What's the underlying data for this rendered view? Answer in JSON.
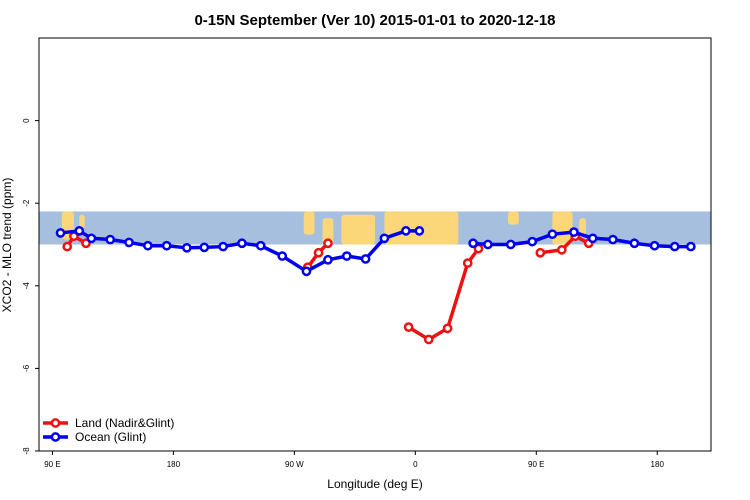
{
  "chart_data": {
    "type": "line",
    "title": "0-15N September (Ver 10)   2015-01-01 to 2020-12-18",
    "xlabel": "Longitude (deg E)",
    "ylabel": "XCO2 - MLO trend (ppm)",
    "xlim": [
      80,
      180
    ],
    "ylim": [
      -8,
      2
    ],
    "x_tick_values": [
      90,
      180,
      270,
      360,
      450,
      540
    ],
    "x_tick_labels": [
      "90 E",
      "180",
      "90 W",
      "0",
      "90 E",
      "180"
    ],
    "y_tick_values": [
      -8,
      -6,
      -4,
      -2,
      0
    ],
    "y_tick_labels": [
      "-8",
      "-6",
      "-4",
      "-2",
      "0"
    ],
    "legend_position": "bottom-left",
    "map_band": {
      "y_range": [
        -3.0,
        -2.2
      ],
      "ocean_color": "#a7bfdf",
      "land_color": "#fbd77a"
    },
    "series": [
      {
        "name": "Land (Nadir&Glint)",
        "color": "#ee1111",
        "segments": [
          {
            "x": [
              101,
              106,
              115
            ],
            "y": [
              -3.05,
              -2.8,
              -2.97
            ]
          },
          {
            "x": [
              280,
              288,
              295
            ],
            "y": [
              -3.55,
              -3.2,
              -2.97
            ]
          },
          {
            "x": [
              355,
              370,
              384,
              399,
              407
            ],
            "y": [
              -5.0,
              -5.3,
              -5.03,
              -3.45,
              -3.1
            ]
          },
          {
            "x": [
              453,
              469,
              479,
              489
            ],
            "y": [
              -3.2,
              -3.13,
              -2.8,
              -2.97
            ]
          }
        ]
      },
      {
        "name": "Ocean (Glint)",
        "color": "#0000ee",
        "segments": [
          {
            "x": [
              96,
              110,
              119,
              133,
              147,
              161,
              175,
              190,
              203,
              217,
              231,
              245,
              261,
              279,
              295,
              309,
              323,
              337,
              353,
              363
            ],
            "y": [
              -2.72,
              -2.67,
              -2.85,
              -2.88,
              -2.95,
              -3.03,
              -3.03,
              -3.08,
              -3.07,
              -3.05,
              -2.97,
              -3.03,
              -3.28,
              -3.65,
              -3.37,
              -3.28,
              -3.35,
              -2.85,
              -2.67,
              -2.67
            ]
          },
          {
            "x": [
              403,
              414,
              431,
              447,
              462,
              478,
              492,
              507,
              523,
              538,
              553,
              565
            ],
            "y": [
              -2.97,
              -3.0,
              -3.0,
              -2.93,
              -2.75,
              -2.7,
              -2.85,
              -2.88,
              -2.97,
              -3.03,
              -3.05,
              -3.05
            ]
          }
        ]
      }
    ]
  }
}
